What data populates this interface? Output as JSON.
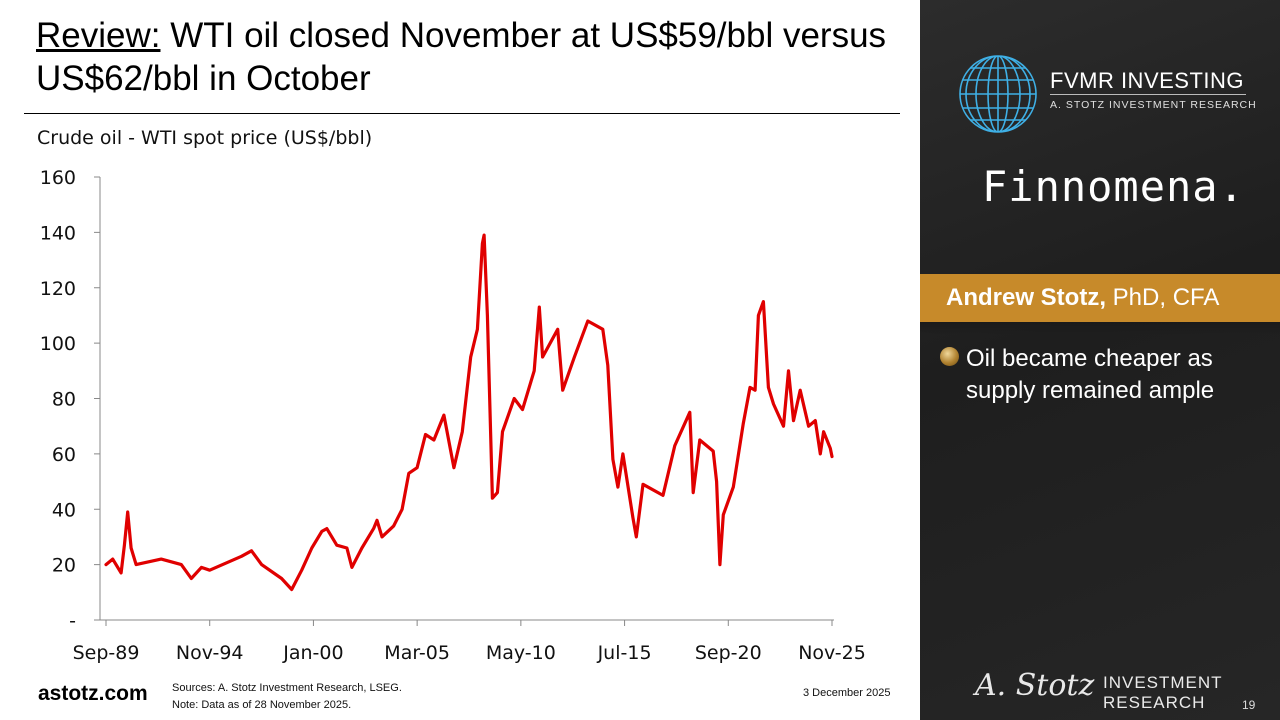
{
  "slide": {
    "title_prefix": "Review:",
    "title_rest": " WTI oil closed November at US$59/bbl versus US$62/bbl in October",
    "site": "astotz.com",
    "sources": "Sources: A. Stotz Investment Research, LSEG.",
    "note": "Note: Data as of 28 November 2025.",
    "date": "3 December 2025",
    "page": "19"
  },
  "panel": {
    "brand": "FVMR INVESTING",
    "brand_sub": "A. STOTZ INVESTMENT RESEARCH",
    "partner": "Finnomena.",
    "presenter_name": "Andrew Stotz,",
    "presenter_cred": " PhD, CFA",
    "bullet": "Oil became cheaper as supply remained ample",
    "signature": "A. Stotz",
    "footer_line1": "INVESTMENT",
    "footer_line2": "RESEARCH"
  },
  "colors": {
    "series": "#e00000",
    "accent": "#c78a2a",
    "panel": "#222222"
  },
  "icons": {
    "globe": "globe-icon",
    "bullet": "gold-coin-bullet-icon"
  },
  "chart_data": {
    "type": "line",
    "title": "Crude oil - WTI spot price (US$/bbl)",
    "xlabel": "",
    "ylabel": "",
    "ylim": [
      0,
      160
    ],
    "yticks": [
      "-",
      "20",
      "40",
      "60",
      "80",
      "100",
      "120",
      "140",
      "160"
    ],
    "xticks": [
      "Sep-89",
      "Nov-94",
      "Jan-00",
      "Mar-05",
      "May-10",
      "Jul-15",
      "Sep-20",
      "Nov-25"
    ],
    "grid": false,
    "legend": "none",
    "series": [
      {
        "color": "#e00000",
        "x": [
          "1989-09",
          "1990-01",
          "1990-06",
          "1990-08",
          "1990-10",
          "1990-12",
          "1991-03",
          "1992-06",
          "1993-06",
          "1993-12",
          "1994-06",
          "1994-11",
          "1996-06",
          "1996-12",
          "1997-06",
          "1998-06",
          "1998-12",
          "1999-06",
          "1999-12",
          "2000-06",
          "2000-09",
          "2001-03",
          "2001-09",
          "2001-12",
          "2002-06",
          "2003-01",
          "2003-03",
          "2003-06",
          "2004-01",
          "2004-06",
          "2004-10",
          "2005-03",
          "2005-08",
          "2006-01",
          "2006-07",
          "2007-01",
          "2007-06",
          "2007-11",
          "2008-03",
          "2008-06",
          "2008-07",
          "2008-09",
          "2008-12",
          "2009-03",
          "2009-06",
          "2010-01",
          "2010-06",
          "2011-01",
          "2011-04",
          "2011-06",
          "2012-03",
          "2012-06",
          "2013-01",
          "2013-09",
          "2014-06",
          "2014-09",
          "2014-12",
          "2015-03",
          "2015-06",
          "2015-12",
          "2016-02",
          "2016-06",
          "2017-06",
          "2018-01",
          "2018-10",
          "2018-12",
          "2019-04",
          "2019-12",
          "2020-02",
          "2020-04",
          "2020-06",
          "2020-12",
          "2021-06",
          "2021-10",
          "2022-01",
          "2022-03",
          "2022-06",
          "2022-09",
          "2022-12",
          "2023-06",
          "2023-09",
          "2023-12",
          "2024-04",
          "2024-09",
          "2025-01",
          "2025-04",
          "2025-06",
          "2025-10",
          "2025-11"
        ],
        "y": [
          20,
          22,
          17,
          27,
          39,
          26,
          20,
          22,
          20,
          15,
          19,
          18,
          23,
          25,
          20,
          15,
          11,
          18,
          26,
          32,
          33,
          27,
          26,
          19,
          26,
          33,
          36,
          30,
          34,
          40,
          53,
          55,
          67,
          65,
          74,
          55,
          68,
          95,
          105,
          136,
          139,
          110,
          44,
          46,
          68,
          80,
          76,
          90,
          113,
          95,
          105,
          83,
          95,
          108,
          105,
          92,
          58,
          48,
          60,
          37,
          30,
          49,
          45,
          63,
          75,
          46,
          65,
          61,
          50,
          20,
          38,
          48,
          71,
          84,
          83,
          110,
          115,
          84,
          78,
          70,
          90,
          72,
          83,
          70,
          72,
          60,
          68,
          62,
          59
        ]
      }
    ]
  }
}
